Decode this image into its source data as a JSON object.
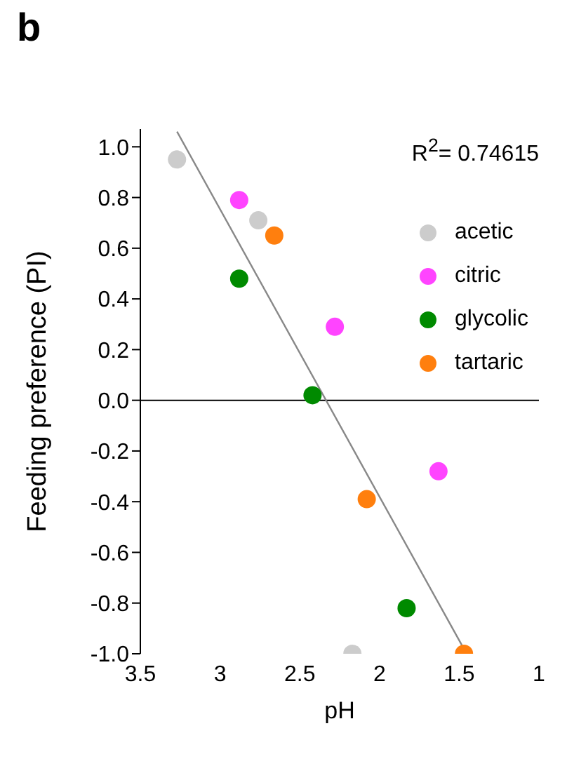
{
  "chart_data": {
    "type": "scatter",
    "title": "b",
    "xlabel": "pH",
    "ylabel": "Feeding preference (PI)",
    "xlim": [
      3.5,
      1
    ],
    "xticks": [
      3.5,
      3,
      2.5,
      2,
      1.5,
      1
    ],
    "ylim": [
      -1.0,
      1.07
    ],
    "yticks": [
      {
        "value": -1,
        "label": "-1.0"
      },
      {
        "value": -0.8,
        "label": "-0.8"
      },
      {
        "value": -0.6,
        "label": "-0.6"
      },
      {
        "value": -0.4,
        "label": "-0.4"
      },
      {
        "value": -0.2,
        "label": "-0.2"
      },
      {
        "value": 0,
        "label": "0.0"
      },
      {
        "value": 0.2,
        "label": "0.2"
      },
      {
        "value": 0.4,
        "label": "0.4"
      },
      {
        "value": 0.6,
        "label": "0.6"
      },
      {
        "value": 0.8,
        "label": "0.8"
      },
      {
        "value": 1,
        "label": "1.0"
      }
    ],
    "ref_lines": [
      {
        "axis": "y",
        "value": 0,
        "color": "#000000"
      }
    ],
    "grid": false,
    "legend": "top right",
    "marker": "circle",
    "annotations": [
      "R$^{2}$= 0.74615"
    ],
    "series": [
      {
        "name": "acetic",
        "color": "#cccccc",
        "x": [
          3.27,
          2.76,
          2.17
        ],
        "values": [
          0.95,
          0.71,
          -1.0
        ]
      },
      {
        "name": "citric",
        "color": "#ff44ff",
        "x": [
          2.88,
          2.28,
          1.63
        ],
        "values": [
          0.79,
          0.29,
          -0.28
        ]
      },
      {
        "name": "glycolic",
        "color": "#008a00",
        "x": [
          2.88,
          2.42,
          1.83
        ],
        "values": [
          0.48,
          0.02,
          -0.82
        ]
      },
      {
        "name": "tartaric",
        "color": "#ff7f0e",
        "x": [
          2.66,
          2.08,
          1.47
        ],
        "values": [
          0.65,
          -0.39,
          -1.0
        ]
      },
      {
        "type": "line",
        "color": "#888888",
        "marker": "none",
        "line_style": "solid",
        "x": [
          3.27,
          1.48
        ],
        "values": [
          1.06,
          -0.97
        ]
      }
    ]
  }
}
